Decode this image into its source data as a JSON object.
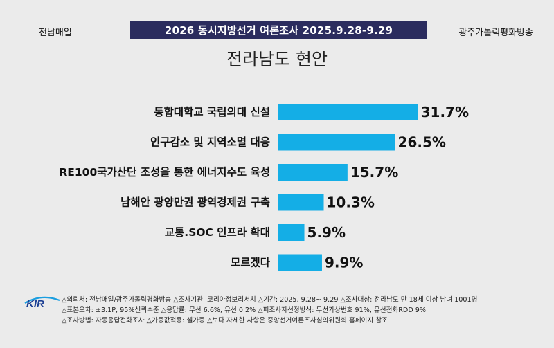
{
  "header": {
    "left_sponsor": "전남매일",
    "headline": "2026 동시지방선거 여론조사 2025.9.28-9.29",
    "right_sponsor": "광주가톨릭평화방송"
  },
  "chart_data": {
    "type": "bar",
    "orientation": "horizontal",
    "title": "전라남도 현안",
    "categories": [
      "통합대학교 국립의대 신설",
      "인구감소 및 지역소멸 대응",
      "RE100국가산단 조성을 통한 에너지수도 육성",
      "남해안 광양만권 광역경제권 구축",
      "교통.SOC 인프라 확대",
      "모르겠다"
    ],
    "values": [
      31.7,
      26.5,
      15.7,
      10.3,
      5.9,
      9.9
    ],
    "value_labels": [
      "31.7%",
      "26.5%",
      "15.7%",
      "10.3%",
      "5.9%",
      "9.9%"
    ],
    "unit": "%",
    "bar_color": "#14aee6"
  },
  "footer": {
    "logo_text": "KIR",
    "lines": [
      "△의뢰처: 전남매일/광주가톨릭평화방송 △조사기관: 코리아정보리서치 △기간: 2025. 9.28~ 9.29 △조사대상: 전라남도 만 18세 이상 남녀 1001명",
      "△표본오차: ±3.1P, 95%신뢰수준 △응답률: 무선 6.6%, 유선 0.2% △피조사자선정방식: 무선가상번호 91%, 유선전화RDD 9%",
      "△조사방법: 자동응답전화조사 △가중값적용: 셀가중 △보다 자세한 사항은 중앙선거여론조사심의위원회 홈페이지 참조"
    ]
  }
}
